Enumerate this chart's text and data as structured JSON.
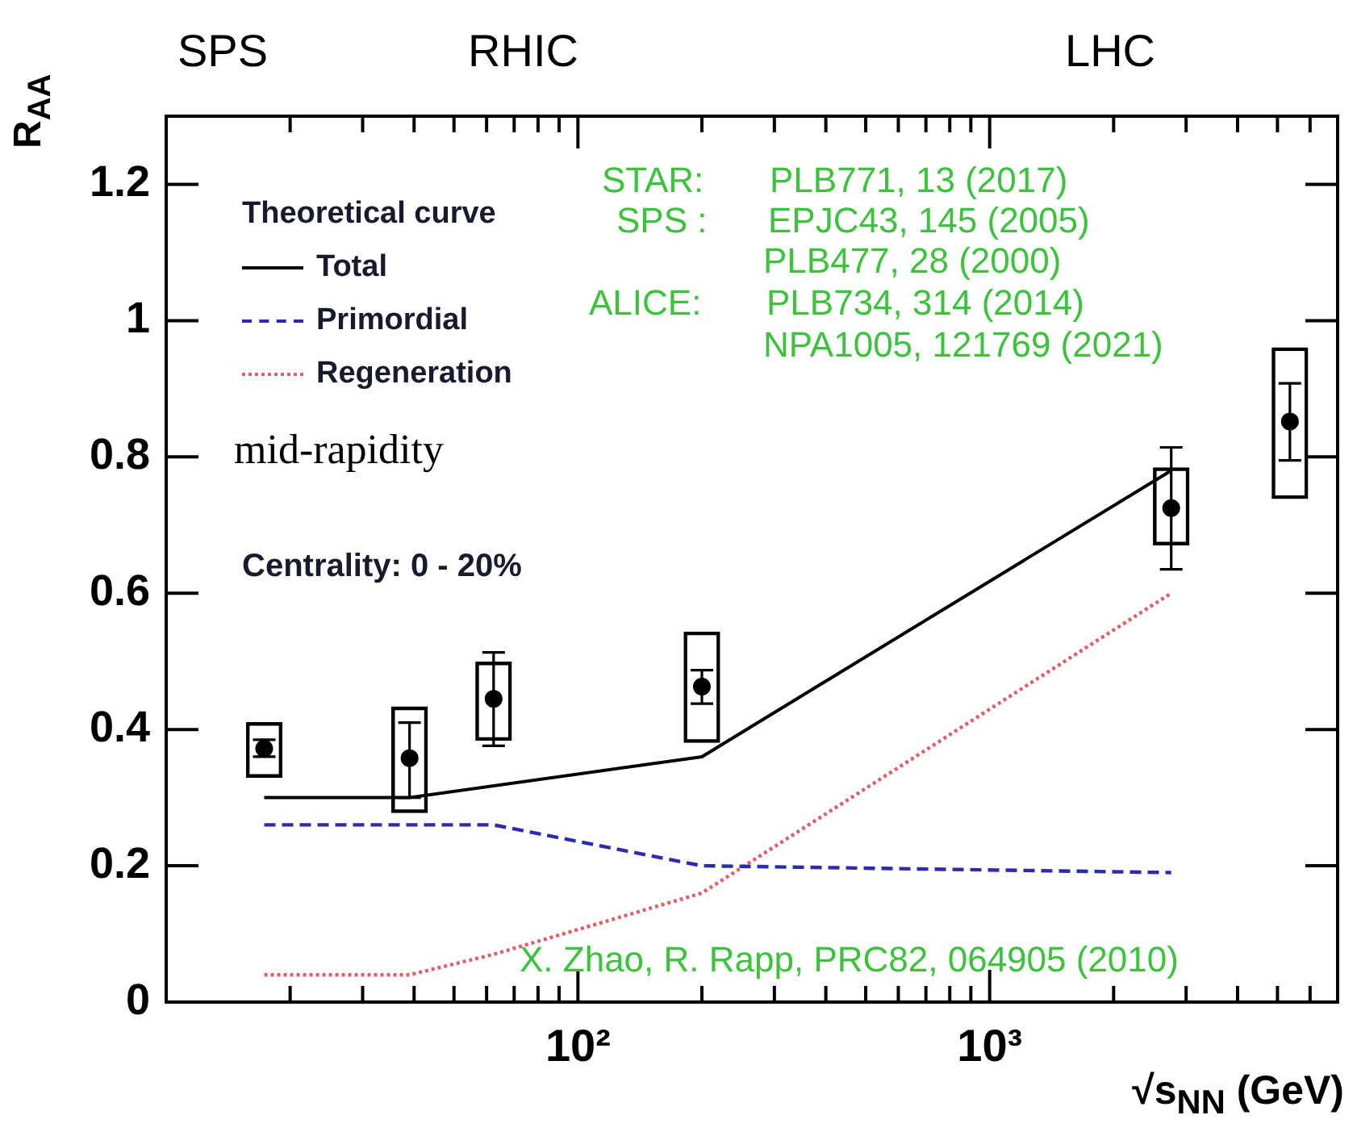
{
  "chart_data": {
    "type": "line",
    "xlabel": "√s$_{NN}$ (GeV)",
    "ylabel": "R$_{AA}$",
    "legend_title": "Theoretical curve",
    "legend": "top left",
    "log": "x",
    "grid": false,
    "xlim": [
      10,
      7000
    ],
    "ylim": [
      0,
      1.3
    ],
    "xticks": [
      {
        "value": 20,
        "label": null
      },
      {
        "value": 30,
        "label": null
      },
      {
        "value": 40,
        "label": null
      },
      {
        "value": 50,
        "label": null
      },
      {
        "value": 60,
        "label": null
      },
      {
        "value": 70,
        "label": null
      },
      {
        "value": 80,
        "label": null
      },
      {
        "value": 90,
        "label": null
      },
      {
        "value": 100,
        "label": "10²"
      },
      {
        "value": 200,
        "label": null
      },
      {
        "value": 300,
        "label": null
      },
      {
        "value": 400,
        "label": null
      },
      {
        "value": 500,
        "label": null
      },
      {
        "value": 600,
        "label": null
      },
      {
        "value": 700,
        "label": null
      },
      {
        "value": 800,
        "label": null
      },
      {
        "value": 900,
        "label": null
      },
      {
        "value": 1000,
        "label": "10³"
      },
      {
        "value": 2000,
        "label": null
      },
      {
        "value": 3000,
        "label": null
      },
      {
        "value": 4000,
        "label": null
      },
      {
        "value": 5000,
        "label": null
      },
      {
        "value": 6000,
        "label": null
      }
    ],
    "yticks": [
      0,
      0.2,
      0.4,
      0.6,
      0.8,
      1,
      1.2
    ],
    "series": [
      {
        "name": "Total",
        "color": "#000000",
        "line_style": "solid",
        "x": [
          17.3,
          39,
          200,
          2760
        ],
        "values": [
          0.3,
          0.3,
          0.36,
          0.78
        ]
      },
      {
        "name": "Primordial",
        "type": "line",
        "color": "#2b2bb0",
        "line_style": "dashed",
        "x": [
          17.3,
          62.4,
          200,
          2760
        ],
        "values": [
          0.26,
          0.26,
          0.2,
          0.19
        ]
      },
      {
        "name": "Regeneration",
        "type": "line",
        "color": "#e0606a",
        "line_style": "dotted",
        "x": [
          17.3,
          39,
          62.4,
          200,
          2760
        ],
        "values": [
          0.04,
          0.04,
          0.07,
          0.16,
          0.6
        ]
      },
      {
        "type": "bar",
        "color": "#000000",
        "x": [
          17.3,
          39,
          62.4,
          200,
          2760,
          5360
        ],
        "base": [
          0.33,
          0.278,
          0.384,
          0.381,
          0.671,
          0.739
        ],
        "values": [
          0.08,
          0.155,
          0.115,
          0.162,
          0.113,
          0.221
        ]
      },
      {
        "type": "scatter",
        "color": "#000000",
        "marker": "circle",
        "x": [
          17.3,
          39,
          62.4,
          200,
          2760,
          5360
        ],
        "values": [
          0.372,
          0.358,
          0.445,
          0.463,
          0.725,
          0.852
        ],
        "errors": [
          [
            0.36,
            0.385
          ],
          [
            0.3,
            0.41
          ],
          [
            0.376,
            0.513
          ],
          [
            0.438,
            0.487
          ],
          [
            0.635,
            0.814
          ],
          [
            0.795,
            0.908
          ]
        ]
      }
    ],
    "annotations": [
      "SPS",
      "RHIC",
      "LHC",
      "mid-rapidity",
      "Centrality: 0 - 20%",
      "STAR:",
      "PLB771, 13 (2017)",
      "SPS :",
      "EPJC43, 145 (2005)",
      "PLB477, 28 (2000)",
      "ALICE:",
      "PLB734, 314 (2014)",
      "NPA1005, 121769 (2021)",
      "X. Zhao, R. Rapp, PRC82, 064905 (2010)"
    ]
  }
}
